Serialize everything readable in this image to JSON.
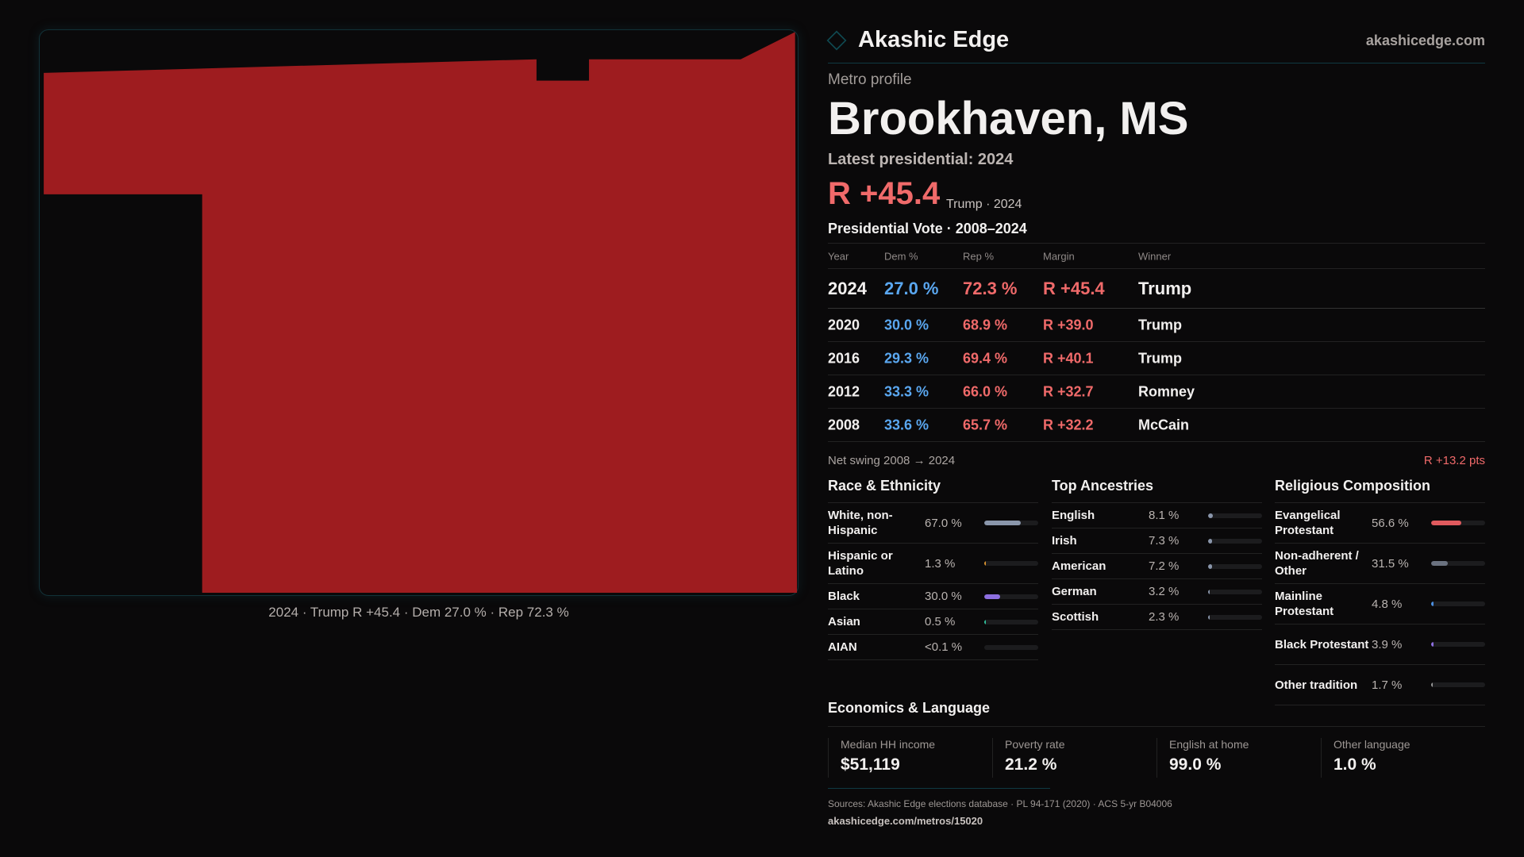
{
  "brand": {
    "name": "Akashic Edge",
    "site": "akashicedge.com"
  },
  "map": {
    "caption": "2024 · Trump R +45.4 · Dem 27.0 % · Rep 72.3 %",
    "fill": "#9e1c1f"
  },
  "profile": {
    "kicker": "Metro profile",
    "title": "Brookhaven, MS",
    "latest": "Latest presidential: 2024",
    "margin": "R +45.4",
    "margin_sub": "Trump · 2024"
  },
  "votes": {
    "title": "Presidential Vote · 2008–2024",
    "headers": [
      "Year",
      "Dem %",
      "Rep %",
      "Margin",
      "Winner"
    ],
    "rows": [
      [
        "2024",
        "27.0 %",
        "72.3 %",
        "R +45.4",
        "Trump"
      ],
      [
        "2020",
        "30.0 %",
        "68.9 %",
        "R +39.0",
        "Trump"
      ],
      [
        "2016",
        "29.3 %",
        "69.4 %",
        "R +40.1",
        "Trump"
      ],
      [
        "2012",
        "33.3 %",
        "66.0 %",
        "R +32.7",
        "Romney"
      ],
      [
        "2008",
        "33.6 %",
        "65.7 %",
        "R +32.2",
        "McCain"
      ]
    ]
  },
  "swing": {
    "label": "Net swing 2008 → 2024",
    "value": "R +13.2 pts"
  },
  "race": {
    "title": "Race & Ethnicity",
    "items": [
      {
        "label": "White, non-Hispanic",
        "pct": "67.0 %",
        "value": 67.0,
        "color": "#8a96ab"
      },
      {
        "label": "Hispanic or Latino",
        "pct": "1.3 %",
        "value": 1.3,
        "color": "#d9922e"
      },
      {
        "label": "Black",
        "pct": "30.0 %",
        "value": 30.0,
        "color": "#8d6fe0"
      },
      {
        "label": "Asian",
        "pct": "0.5 %",
        "value": 0.5,
        "color": "#2fbf9a"
      },
      {
        "label": "AIAN",
        "pct": "<0.1 %",
        "value": 0.05,
        "color": "#888888"
      }
    ]
  },
  "ancestry": {
    "title": "Top Ancestries",
    "items": [
      {
        "label": "English",
        "pct": "8.1 %",
        "value": 8.1,
        "color": "#8a96ab"
      },
      {
        "label": "Irish",
        "pct": "7.3 %",
        "value": 7.3,
        "color": "#8a96ab"
      },
      {
        "label": "American",
        "pct": "7.2 %",
        "value": 7.2,
        "color": "#8a96ab"
      },
      {
        "label": "German",
        "pct": "3.2 %",
        "value": 3.2,
        "color": "#8a96ab"
      },
      {
        "label": "Scottish",
        "pct": "2.3 %",
        "value": 2.3,
        "color": "#8a96ab"
      }
    ]
  },
  "religion": {
    "title": "Religious Composition",
    "items": [
      {
        "label": "Evangelical Protestant",
        "pct": "56.6 %",
        "value": 56.6,
        "color": "#e05a5e"
      },
      {
        "label": "Non-adherent / Other",
        "pct": "31.5 %",
        "value": 31.5,
        "color": "#6b7280"
      },
      {
        "label": "Mainline Protestant",
        "pct": "4.8 %",
        "value": 4.8,
        "color": "#4b8fe0"
      },
      {
        "label": "Black Protestant",
        "pct": "3.9 %",
        "value": 3.9,
        "color": "#8d6fe0"
      },
      {
        "label": "Other tradition",
        "pct": "1.7 %",
        "value": 1.7,
        "color": "#9a9a9a"
      }
    ]
  },
  "econ": {
    "title": "Economics & Language",
    "stats": [
      {
        "label": "Median HH income",
        "value": "$51,119"
      },
      {
        "label": "Poverty rate",
        "value": "21.2 %"
      },
      {
        "label": "English at home",
        "value": "99.0 %"
      },
      {
        "label": "Other language",
        "value": "1.0 %"
      }
    ]
  },
  "footer": {
    "sources": "Sources: Akashic Edge elections database · PL 94-171 (2020) · ACS 5-yr B04006",
    "url": "akashicedge.com/metros/15020"
  }
}
